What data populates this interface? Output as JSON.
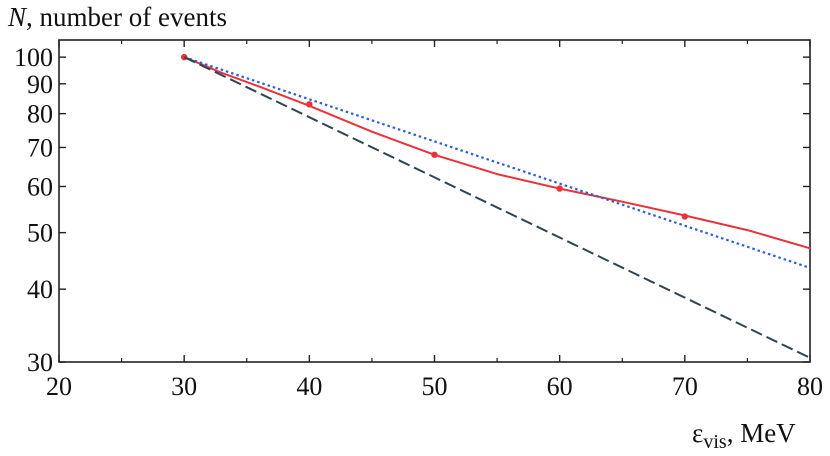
{
  "chart_data": {
    "type": "line",
    "title": "",
    "ylabel": {
      "symbol": "N",
      "rest": ", number of events"
    },
    "xlabel": {
      "symbol": "ε",
      "subscript": "vis",
      "unit": ", MeV"
    },
    "x_scale": "linear",
    "y_scale": "log",
    "xlim": [
      20,
      80
    ],
    "ylim": [
      30,
      107
    ],
    "x_ticks": [
      20,
      30,
      40,
      50,
      60,
      70,
      80
    ],
    "y_ticks": [
      30,
      40,
      50,
      60,
      70,
      80,
      90,
      100
    ],
    "grid": false,
    "legend": "none",
    "series": [
      {
        "style": "solid",
        "color": "#e8333a",
        "x": [
          30,
          33,
          36,
          40,
          45,
          50,
          55,
          60,
          65,
          70,
          75,
          80
        ],
        "y": [
          100,
          94,
          89,
          82.5,
          74.5,
          68,
          63,
          59.5,
          56.5,
          53.5,
          50.5,
          47
        ],
        "markers": {
          "x": [
            30,
            40,
            50,
            60,
            70
          ],
          "y": [
            100,
            83,
            68,
            59.5,
            53.3
          ]
        }
      },
      {
        "style": "dotted",
        "color": "#2b5fd9",
        "x": [
          30,
          80
        ],
        "y": [
          100,
          43.5
        ]
      },
      {
        "style": "dashed",
        "color": "#2f4452",
        "x": [
          30,
          80
        ],
        "y": [
          100,
          30.5
        ]
      }
    ]
  }
}
